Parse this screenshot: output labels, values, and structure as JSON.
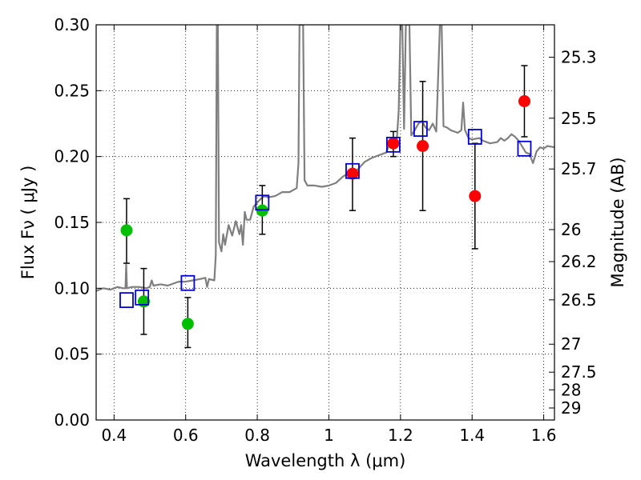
{
  "chart_data": {
    "type": "scatter",
    "xlabel": "Wavelength  λ (μm)",
    "ylabel": "Flux  Fν  ( μJy )",
    "y2label": "Magnitude (AB)",
    "xlim": [
      0.35,
      1.63
    ],
    "ylim": [
      0.0,
      0.3
    ],
    "x_ticks": [
      "0.4",
      "0.6",
      "0.8",
      "1",
      "1.2",
      "1.4",
      "1.6"
    ],
    "y_ticks": [
      "0.00",
      "0.05",
      "0.10",
      "0.15",
      "0.20",
      "0.25",
      "0.30"
    ],
    "mag_ticks": [
      "25.3",
      "25.5",
      "25.7",
      "26",
      "26.2",
      "26.5",
      "27",
      "27.5",
      "28",
      "29"
    ],
    "grid": true,
    "colors": {
      "model": "#7f7f7f",
      "green": "#00bf00",
      "red": "#ff0000",
      "square": "#0000cc",
      "errorbar": "#000000"
    },
    "series": [
      {
        "name": "green points",
        "marker": "circle",
        "color": "green",
        "points": [
          {
            "x": 0.435,
            "y": 0.144,
            "lo": 0.119,
            "hi": 0.168
          },
          {
            "x": 0.483,
            "y": 0.09,
            "lo": 0.065,
            "hi": 0.115
          },
          {
            "x": 0.606,
            "y": 0.073,
            "lo": 0.055,
            "hi": 0.093
          },
          {
            "x": 0.814,
            "y": 0.159,
            "lo": 0.141,
            "hi": 0.178
          }
        ]
      },
      {
        "name": "red points",
        "marker": "circle",
        "color": "red",
        "points": [
          {
            "x": 1.066,
            "y": 0.187,
            "lo": 0.159,
            "hi": 0.214
          },
          {
            "x": 1.18,
            "y": 0.21,
            "lo": 0.2,
            "hi": 0.219
          },
          {
            "x": 1.262,
            "y": 0.208,
            "lo": 0.159,
            "hi": 0.257
          },
          {
            "x": 1.408,
            "y": 0.17,
            "lo": 0.13,
            "hi": 0.21
          },
          {
            "x": 1.546,
            "y": 0.242,
            "lo": 0.215,
            "hi": 0.269
          }
        ]
      },
      {
        "name": "model photometry",
        "marker": "square",
        "color": "square",
        "points": [
          {
            "x": 0.435,
            "y": 0.091
          },
          {
            "x": 0.478,
            "y": 0.093
          },
          {
            "x": 0.606,
            "y": 0.104
          },
          {
            "x": 0.814,
            "y": 0.165
          },
          {
            "x": 1.066,
            "y": 0.189
          },
          {
            "x": 1.18,
            "y": 0.209
          },
          {
            "x": 1.256,
            "y": 0.221
          },
          {
            "x": 1.408,
            "y": 0.215
          },
          {
            "x": 1.546,
            "y": 0.206
          }
        ]
      }
    ],
    "model_spectrum": [
      [
        0.35,
        0.098
      ],
      [
        0.37,
        0.1
      ],
      [
        0.39,
        0.099
      ],
      [
        0.41,
        0.101
      ],
      [
        0.425,
        0.1
      ],
      [
        0.432,
        0.1
      ],
      [
        0.434,
        0.118
      ],
      [
        0.436,
        0.1
      ],
      [
        0.45,
        0.101
      ],
      [
        0.47,
        0.101
      ],
      [
        0.49,
        0.1
      ],
      [
        0.5,
        0.101
      ],
      [
        0.505,
        0.106
      ],
      [
        0.51,
        0.102
      ],
      [
        0.53,
        0.103
      ],
      [
        0.55,
        0.102
      ],
      [
        0.58,
        0.105
      ],
      [
        0.6,
        0.105
      ],
      [
        0.62,
        0.106
      ],
      [
        0.64,
        0.107
      ],
      [
        0.655,
        0.108
      ],
      [
        0.66,
        0.101
      ],
      [
        0.665,
        0.107
      ],
      [
        0.68,
        0.106
      ],
      [
        0.684,
        0.125
      ],
      [
        0.687,
        0.3
      ],
      [
        0.69,
        0.3
      ],
      [
        0.693,
        0.135
      ],
      [
        0.7,
        0.128
      ],
      [
        0.705,
        0.141
      ],
      [
        0.71,
        0.133
      ],
      [
        0.72,
        0.148
      ],
      [
        0.73,
        0.14
      ],
      [
        0.74,
        0.151
      ],
      [
        0.75,
        0.141
      ],
      [
        0.755,
        0.148
      ],
      [
        0.76,
        0.133
      ],
      [
        0.765,
        0.158
      ],
      [
        0.77,
        0.152
      ],
      [
        0.78,
        0.152
      ],
      [
        0.79,
        0.162
      ],
      [
        0.8,
        0.165
      ],
      [
        0.81,
        0.168
      ],
      [
        0.82,
        0.17
      ],
      [
        0.83,
        0.169
      ],
      [
        0.85,
        0.17
      ],
      [
        0.87,
        0.173
      ],
      [
        0.89,
        0.173
      ],
      [
        0.91,
        0.176
      ],
      [
        0.915,
        0.195
      ],
      [
        0.918,
        0.3
      ],
      [
        0.928,
        0.3
      ],
      [
        0.932,
        0.182
      ],
      [
        0.94,
        0.178
      ],
      [
        0.96,
        0.178
      ],
      [
        0.98,
        0.177
      ],
      [
        1.0,
        0.178
      ],
      [
        1.02,
        0.18
      ],
      [
        1.04,
        0.185
      ],
      [
        1.06,
        0.188
      ],
      [
        1.08,
        0.19
      ],
      [
        1.1,
        0.196
      ],
      [
        1.12,
        0.199
      ],
      [
        1.14,
        0.201
      ],
      [
        1.16,
        0.203
      ],
      [
        1.17,
        0.21
      ],
      [
        1.18,
        0.209
      ],
      [
        1.19,
        0.214
      ],
      [
        1.195,
        0.235
      ],
      [
        1.2,
        0.3
      ],
      [
        1.205,
        0.3
      ],
      [
        1.21,
        0.221
      ],
      [
        1.215,
        0.3
      ],
      [
        1.225,
        0.3
      ],
      [
        1.23,
        0.216
      ],
      [
        1.24,
        0.22
      ],
      [
        1.25,
        0.225
      ],
      [
        1.26,
        0.227
      ],
      [
        1.27,
        0.222
      ],
      [
        1.28,
        0.22
      ],
      [
        1.29,
        0.225
      ],
      [
        1.3,
        0.219
      ],
      [
        1.305,
        0.26
      ],
      [
        1.31,
        0.3
      ],
      [
        1.315,
        0.3
      ],
      [
        1.32,
        0.223
      ],
      [
        1.33,
        0.222
      ],
      [
        1.34,
        0.22
      ],
      [
        1.36,
        0.218
      ],
      [
        1.37,
        0.22
      ],
      [
        1.375,
        0.241
      ],
      [
        1.38,
        0.22
      ],
      [
        1.39,
        0.214
      ],
      [
        1.4,
        0.213
      ],
      [
        1.42,
        0.214
      ],
      [
        1.43,
        0.212
      ],
      [
        1.45,
        0.21
      ],
      [
        1.47,
        0.211
      ],
      [
        1.48,
        0.214
      ],
      [
        1.49,
        0.212
      ],
      [
        1.5,
        0.214
      ],
      [
        1.51,
        0.217
      ],
      [
        1.52,
        0.215
      ],
      [
        1.53,
        0.212
      ],
      [
        1.55,
        0.203
      ],
      [
        1.56,
        0.202
      ],
      [
        1.57,
        0.195
      ],
      [
        1.58,
        0.204
      ],
      [
        1.59,
        0.207
      ],
      [
        1.6,
        0.206
      ],
      [
        1.61,
        0.208
      ],
      [
        1.63,
        0.207
      ]
    ]
  }
}
